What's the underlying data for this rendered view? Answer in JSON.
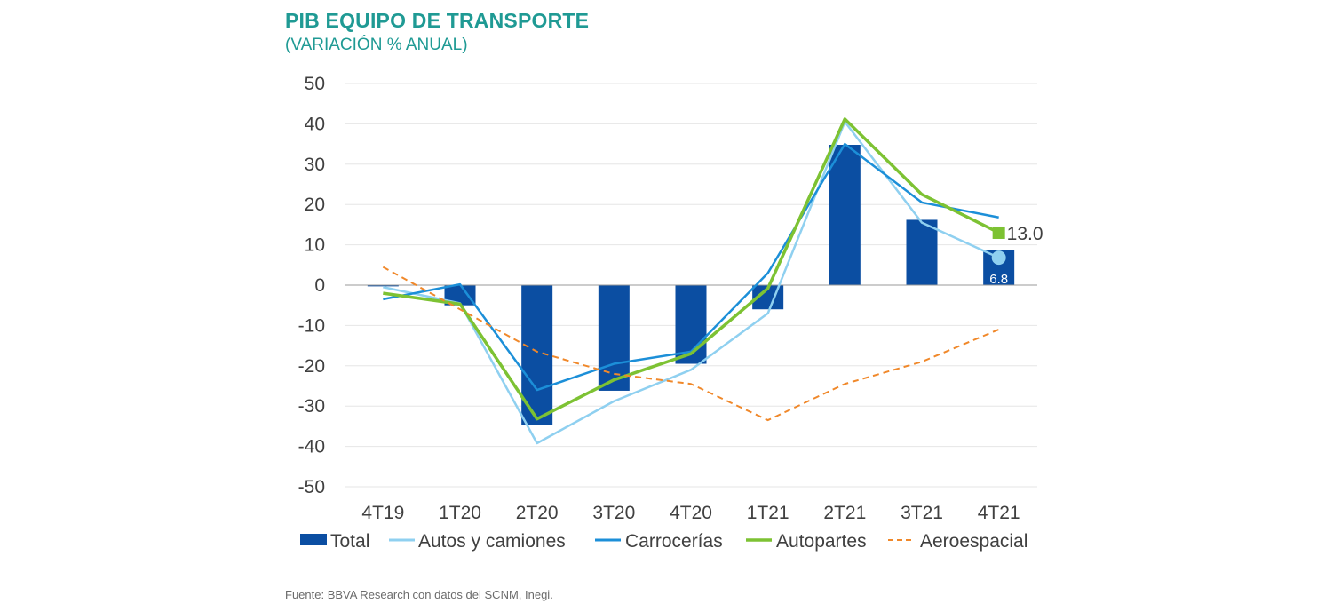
{
  "title": "PIB EQUIPO DE TRANSPORTE",
  "subtitle": "(VARIACIÓN % ANUAL)",
  "source": "Fuente: BBVA Research con datos del SCNM, Inegi.",
  "colors": {
    "total": "#0b4ea2",
    "autos": "#8fd0f0",
    "carrocerias": "#1c8fd8",
    "autopartes": "#7dc233",
    "aeroespacial": "#f0882a",
    "grid": "#e6e6e6",
    "title": "#1f9a94"
  },
  "chart_data": {
    "type": "bar",
    "title": "PIB EQUIPO DE TRANSPORTE",
    "subtitle": "(VARIACIÓN % ANUAL)",
    "categories": [
      "4T19",
      "1T20",
      "2T20",
      "3T20",
      "4T20",
      "1T21",
      "2T21",
      "3T21",
      "4T21"
    ],
    "ylim": [
      -50,
      50
    ],
    "yticks": [
      50,
      40,
      30,
      20,
      10,
      0,
      -10,
      -20,
      -30,
      -40,
      -50
    ],
    "grid": true,
    "legend_position": "bottom",
    "series": [
      {
        "key": "total",
        "name": "Total",
        "kind": "bar",
        "values": [
          -0.3,
          -5.0,
          -34.8,
          -26.2,
          -19.5,
          -6.0,
          34.8,
          16.2,
          8.8
        ]
      },
      {
        "key": "autos",
        "name": "Autos y camiones",
        "kind": "line",
        "values": [
          -0.5,
          -4.5,
          -39.2,
          -28.8,
          -21.0,
          -7.0,
          40.5,
          15.5,
          6.8
        ]
      },
      {
        "key": "carrocerias",
        "name": "Carrocerías",
        "kind": "line",
        "values": [
          -3.5,
          0.2,
          -26.0,
          -19.5,
          -16.5,
          3.0,
          35.0,
          20.5,
          16.8
        ]
      },
      {
        "key": "autopartes",
        "name": "Autopartes",
        "kind": "line",
        "values": [
          -2.0,
          -4.7,
          -33.2,
          -23.5,
          -17.0,
          -0.8,
          41.2,
          22.5,
          13.0
        ]
      },
      {
        "key": "aeroespacial",
        "name": "Aeroespacial",
        "kind": "dashed-line",
        "values": [
          4.5,
          -6.0,
          -16.5,
          -22.0,
          -24.5,
          -33.5,
          -24.5,
          -19.0,
          -11.0
        ]
      }
    ],
    "annotations": [
      {
        "series": "Autopartes",
        "category": "4T21",
        "label": "13.0"
      },
      {
        "series": "Autos y camiones",
        "category": "4T21",
        "label": "6.8"
      }
    ]
  }
}
